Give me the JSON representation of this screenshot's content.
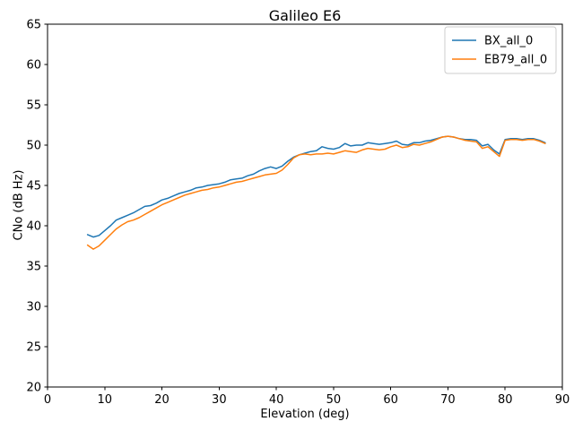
{
  "window": {
    "title": "Galileo E6 figure"
  },
  "chart_data": {
    "type": "line",
    "title": "Galileo E6",
    "xlabel": "Elevation (deg)",
    "ylabel": "CNo (dB Hz)",
    "xlim": [
      0,
      90
    ],
    "ylim": [
      20,
      65
    ],
    "xticks": [
      0,
      10,
      20,
      30,
      40,
      50,
      60,
      70,
      80,
      90
    ],
    "yticks": [
      20,
      25,
      30,
      35,
      40,
      45,
      50,
      55,
      60,
      65
    ],
    "grid": false,
    "legend": {
      "position": "upper right",
      "border_color": "#cccccc",
      "background": "#ffffff"
    },
    "x": [
      7,
      8,
      9,
      10,
      11,
      12,
      13,
      14,
      15,
      16,
      17,
      18,
      19,
      20,
      21,
      22,
      23,
      24,
      25,
      26,
      27,
      28,
      29,
      30,
      31,
      32,
      33,
      34,
      35,
      36,
      37,
      38,
      39,
      40,
      41,
      42,
      43,
      44,
      45,
      46,
      47,
      48,
      49,
      50,
      51,
      52,
      53,
      54,
      55,
      56,
      57,
      58,
      59,
      60,
      61,
      62,
      63,
      64,
      65,
      66,
      67,
      68,
      69,
      70,
      71,
      72,
      73,
      74,
      75,
      76,
      77,
      78,
      79,
      80,
      81,
      82,
      83,
      84,
      85,
      86,
      87
    ],
    "series": [
      {
        "name": "BX_all_0",
        "color": "#1f77b4",
        "values": [
          38.9,
          38.6,
          38.8,
          39.4,
          40.0,
          40.7,
          41.0,
          41.3,
          41.6,
          42.0,
          42.4,
          42.5,
          42.8,
          43.2,
          43.4,
          43.7,
          44.0,
          44.2,
          44.4,
          44.7,
          44.8,
          45.0,
          45.1,
          45.2,
          45.4,
          45.7,
          45.8,
          45.9,
          46.2,
          46.4,
          46.8,
          47.1,
          47.3,
          47.1,
          47.4,
          48.0,
          48.5,
          48.8,
          49.0,
          49.2,
          49.3,
          49.8,
          49.6,
          49.5,
          49.7,
          50.2,
          49.9,
          50.0,
          50.0,
          50.3,
          50.2,
          50.1,
          50.2,
          50.3,
          50.5,
          50.1,
          50.0,
          50.3,
          50.3,
          50.5,
          50.6,
          50.8,
          51.0,
          51.1,
          51.0,
          50.8,
          50.7,
          50.7,
          50.6,
          49.9,
          50.1,
          49.4,
          48.9,
          50.7,
          50.8,
          50.8,
          50.7,
          50.8,
          50.8,
          50.6,
          50.3
        ]
      },
      {
        "name": "EB79_all_0",
        "color": "#ff7f0e",
        "values": [
          37.6,
          37.1,
          37.5,
          38.2,
          38.9,
          39.6,
          40.1,
          40.5,
          40.7,
          41.0,
          41.4,
          41.8,
          42.2,
          42.6,
          42.9,
          43.2,
          43.5,
          43.8,
          44.0,
          44.2,
          44.4,
          44.5,
          44.7,
          44.8,
          45.0,
          45.2,
          45.4,
          45.5,
          45.7,
          45.9,
          46.1,
          46.3,
          46.4,
          46.5,
          46.9,
          47.6,
          48.4,
          48.8,
          48.9,
          48.8,
          48.9,
          48.9,
          49.0,
          48.9,
          49.1,
          49.3,
          49.2,
          49.1,
          49.4,
          49.6,
          49.5,
          49.4,
          49.5,
          49.8,
          50.0,
          49.7,
          49.8,
          50.1,
          50.0,
          50.2,
          50.4,
          50.7,
          51.0,
          51.1,
          51.0,
          50.8,
          50.6,
          50.5,
          50.4,
          49.6,
          49.8,
          49.2,
          48.6,
          50.6,
          50.7,
          50.7,
          50.6,
          50.7,
          50.7,
          50.5,
          50.2
        ]
      }
    ]
  }
}
